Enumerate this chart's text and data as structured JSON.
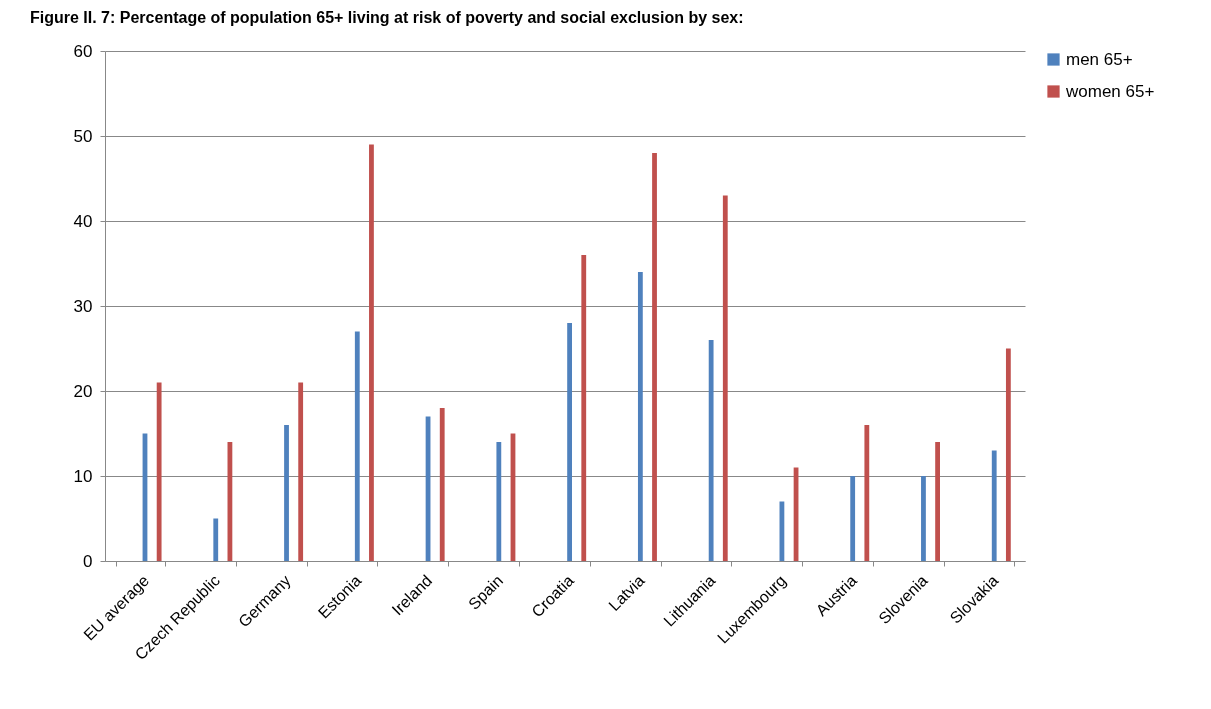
{
  "chart_data": {
    "type": "bar",
    "title": "Figure II. 7: Percentage of population 65+ living at risk of poverty and social exclusion by sex:",
    "categories": [
      "EU average",
      "Czech Republic",
      "Germany",
      "Estonia",
      "Ireland",
      "Spain",
      "Croatia",
      "Latvia",
      "Lithuania",
      "Luxembourg",
      "Austria",
      "Slovenia",
      "Slovakia"
    ],
    "series": [
      {
        "name": "men 65+",
        "color": "#4f81bd",
        "values": [
          15,
          5,
          16,
          27,
          17,
          14,
          28,
          34,
          26,
          7,
          10,
          10,
          13
        ]
      },
      {
        "name": "women 65+",
        "color": "#c0504d",
        "values": [
          21,
          14,
          21,
          49,
          18,
          15,
          36,
          48,
          43,
          11,
          16,
          14,
          25
        ]
      }
    ],
    "ylim": [
      0,
      60
    ],
    "yticks": [
      0,
      10,
      20,
      30,
      40,
      50,
      60
    ],
    "grid": "y",
    "legend": "right"
  }
}
